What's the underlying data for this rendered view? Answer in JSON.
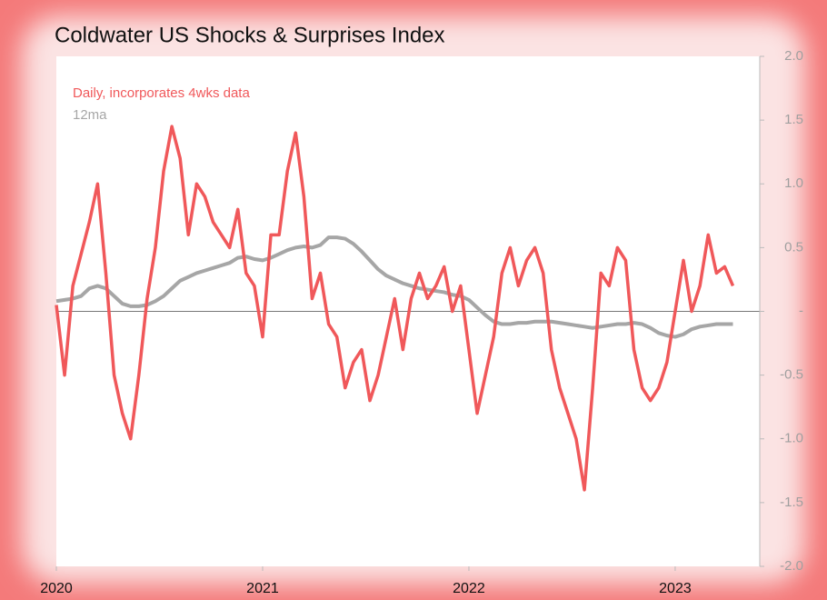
{
  "chart_data": {
    "type": "line",
    "title": "Coldwater US Shocks & Surprises Index",
    "x": [
      2020.0,
      2020.04,
      2020.08,
      2020.12,
      2020.16,
      2020.2,
      2020.24,
      2020.28,
      2020.32,
      2020.36,
      2020.4,
      2020.44,
      2020.48,
      2020.52,
      2020.56,
      2020.6,
      2020.64,
      2020.68,
      2020.72,
      2020.76,
      2020.8,
      2020.84,
      2020.88,
      2020.92,
      2020.96,
      2021.0,
      2021.04,
      2021.08,
      2021.12,
      2021.16,
      2021.2,
      2021.24,
      2021.28,
      2021.32,
      2021.36,
      2021.4,
      2021.44,
      2021.48,
      2021.52,
      2021.56,
      2021.6,
      2021.64,
      2021.68,
      2021.72,
      2021.76,
      2021.8,
      2021.84,
      2021.88,
      2021.92,
      2021.96,
      2022.0,
      2022.04,
      2022.08,
      2022.12,
      2022.16,
      2022.2,
      2022.24,
      2022.28,
      2022.32,
      2022.36,
      2022.4,
      2022.44,
      2022.48,
      2022.52,
      2022.56,
      2022.6,
      2022.64,
      2022.68,
      2022.72,
      2022.76,
      2022.8,
      2022.84,
      2022.88,
      2022.92,
      2022.96,
      2023.0,
      2023.04,
      2023.08,
      2023.12,
      2023.16,
      2023.2,
      2023.24,
      2023.28
    ],
    "series": [
      {
        "name": "Daily, incorporates 4wks data",
        "color": "#f0585a",
        "values": [
          0.05,
          -0.5,
          0.2,
          0.45,
          0.7,
          1.0,
          0.3,
          -0.5,
          -0.8,
          -1.0,
          -0.5,
          0.1,
          0.5,
          1.1,
          1.45,
          1.2,
          0.6,
          1.0,
          0.9,
          0.7,
          0.6,
          0.5,
          0.8,
          0.3,
          0.2,
          -0.2,
          0.6,
          0.6,
          1.1,
          1.4,
          0.9,
          0.1,
          0.3,
          -0.1,
          -0.2,
          -0.6,
          -0.4,
          -0.3,
          -0.7,
          -0.5,
          -0.2,
          0.1,
          -0.3,
          0.1,
          0.3,
          0.1,
          0.2,
          0.35,
          0.0,
          0.2,
          -0.3,
          -0.8,
          -0.5,
          -0.2,
          0.3,
          0.5,
          0.2,
          0.4,
          0.5,
          0.3,
          -0.3,
          -0.6,
          -0.8,
          -1.0,
          -1.4,
          -0.6,
          0.3,
          0.2,
          0.5,
          0.4,
          -0.3,
          -0.6,
          -0.7,
          -0.6,
          -0.4,
          0.0,
          0.4,
          0.0,
          0.2,
          0.6,
          0.3,
          0.35,
          0.2
        ]
      },
      {
        "name": "12ma",
        "color": "#a6a6a6",
        "values": [
          0.08,
          0.09,
          0.1,
          0.12,
          0.18,
          0.2,
          0.18,
          0.12,
          0.06,
          0.04,
          0.04,
          0.05,
          0.08,
          0.12,
          0.18,
          0.24,
          0.27,
          0.3,
          0.32,
          0.34,
          0.36,
          0.38,
          0.42,
          0.43,
          0.41,
          0.4,
          0.42,
          0.45,
          0.48,
          0.5,
          0.51,
          0.5,
          0.52,
          0.58,
          0.58,
          0.57,
          0.53,
          0.47,
          0.4,
          0.33,
          0.28,
          0.25,
          0.22,
          0.2,
          0.18,
          0.17,
          0.16,
          0.15,
          0.13,
          0.12,
          0.09,
          0.03,
          -0.03,
          -0.08,
          -0.1,
          -0.1,
          -0.09,
          -0.09,
          -0.08,
          -0.08,
          -0.08,
          -0.09,
          -0.1,
          -0.11,
          -0.12,
          -0.13,
          -0.12,
          -0.11,
          -0.1,
          -0.1,
          -0.09,
          -0.1,
          -0.13,
          -0.17,
          -0.19,
          -0.2,
          -0.18,
          -0.14,
          -0.12,
          -0.11,
          -0.1,
          -0.1,
          -0.1
        ]
      }
    ],
    "xlim": [
      2020,
      2023.41
    ],
    "xticks": [
      2020,
      2021,
      2022,
      2023
    ],
    "ylim": [
      -2,
      2
    ],
    "yticks": [
      {
        "value": 2,
        "label": "2.0"
      },
      1.5,
      {
        "value": 1,
        "label": "1.0"
      },
      0.5,
      {
        "value": 0,
        "label": "-"
      },
      -0.5,
      {
        "value": -1,
        "label": "-1.0"
      },
      -1.5,
      {
        "value": -2,
        "label": "-2.0"
      }
    ],
    "grid": false
  }
}
